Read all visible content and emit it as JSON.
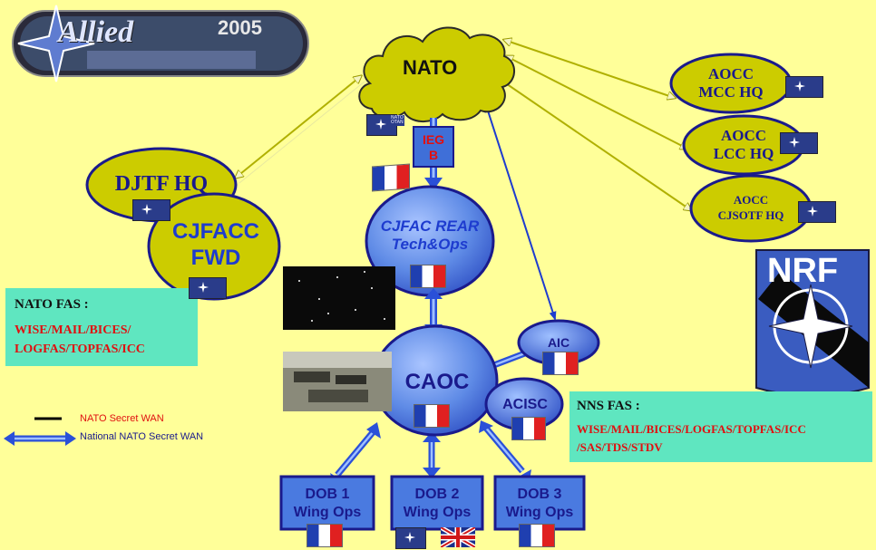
{
  "banner": {
    "logo_text": "Allied",
    "year": "2005"
  },
  "nodes": {
    "nato": "NATO",
    "ieg": [
      "IEG",
      "B"
    ],
    "cjfac_rear": [
      "CJFAC REAR",
      "Tech&Ops"
    ],
    "djtf": "DJTF HQ",
    "cjfacc": [
      "CJFACC",
      "FWD"
    ],
    "aocc_mcc": [
      "AOCC",
      "MCC HQ"
    ],
    "aocc_lcc": [
      "AOCC",
      "LCC HQ"
    ],
    "aocc_cjsotf": [
      "AOCC",
      "CJSOTF HQ"
    ],
    "caoc": "CAOC",
    "aic": "AIC",
    "acisc": "ACISC",
    "dob1": [
      "DOB 1",
      "Wing Ops"
    ],
    "dob2": [
      "DOB 2",
      "Wing Ops"
    ],
    "dob3": [
      "DOB 3",
      "Wing Ops"
    ]
  },
  "nrf_label": "NRF",
  "nato_fas": {
    "title": "NATO FAS :",
    "lines": [
      "WISE/MAIL/BICES/",
      "LOGFAS/TOPFAS/ICC"
    ]
  },
  "nns_fas": {
    "title": "NNS FAS :",
    "lines": [
      "WISE/MAIL/BICES/LOGFAS/TOPFAS/ICC",
      "/SAS/TDS/STDV"
    ]
  },
  "legend": {
    "secret": "NATO Secret WAN",
    "national": "National NATO Secret WAN"
  },
  "flag_text": {
    "nato": "NATO",
    "otan": "OTAN"
  },
  "colors": {
    "background": "#ffff99",
    "olive_node": "#cccc00",
    "blue_node": "#3f6fd8",
    "link_olive": "#b0b000",
    "link_blue": "#1e3ccf",
    "fas_box": "#5fe6c0"
  }
}
